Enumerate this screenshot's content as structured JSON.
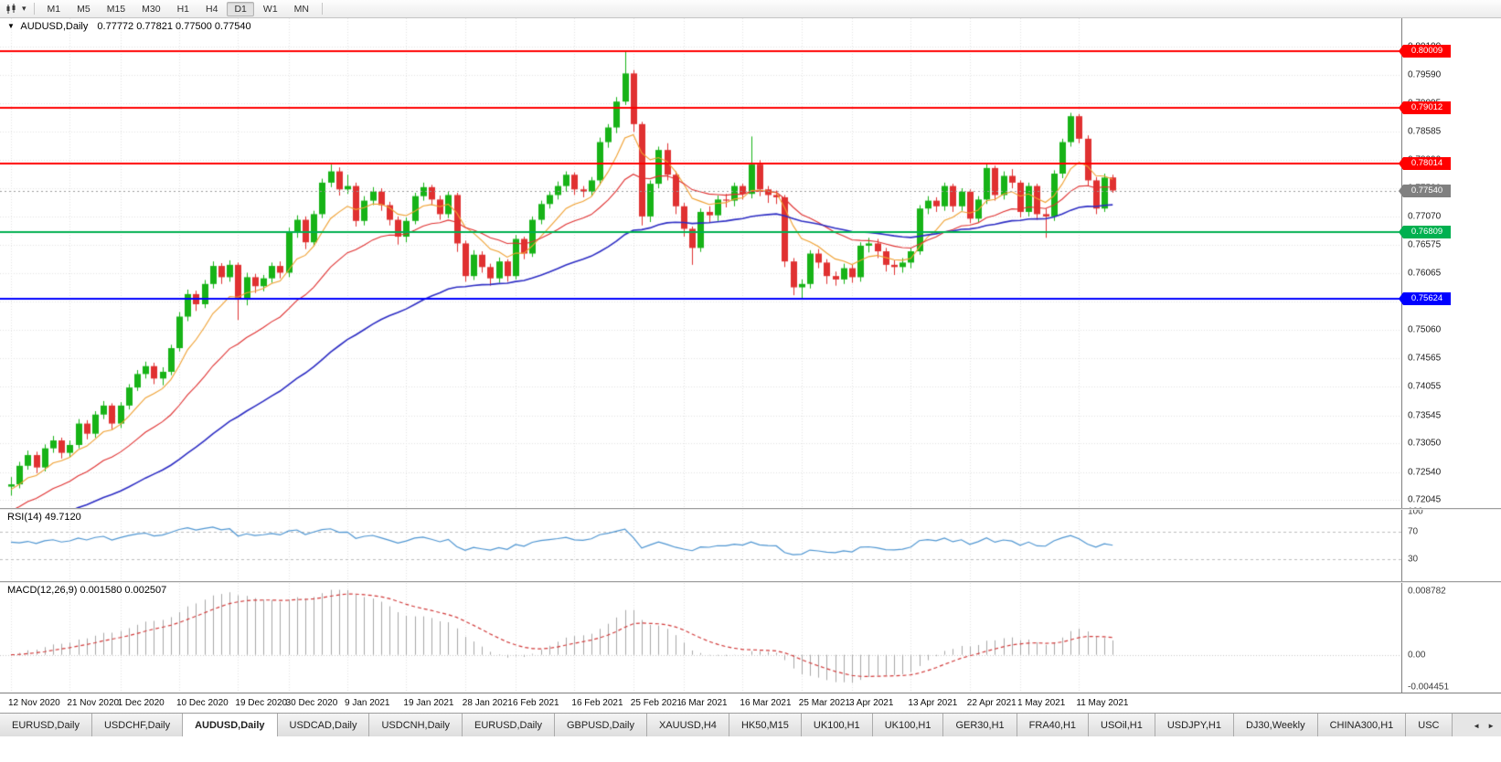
{
  "toolbar": {
    "timeframes": [
      "M1",
      "M5",
      "M15",
      "M30",
      "H1",
      "H4",
      "D1",
      "W1",
      "MN"
    ],
    "active_timeframe": "D1"
  },
  "header": {
    "marker": "▼",
    "symbol": "AUDUSD,Daily",
    "ohlc": "0.77772 0.77821 0.77500 0.77540"
  },
  "price_axis": {
    "range": {
      "min": 0.719,
      "max": 0.806
    },
    "ticks": [
      "0.80100",
      "0.79590",
      "0.79095",
      "0.78585",
      "0.78090",
      "0.77580",
      "0.77070",
      "0.76575",
      "0.76065",
      "0.75570",
      "0.75060",
      "0.74565",
      "0.74055",
      "0.73545",
      "0.73050",
      "0.72540",
      "0.72045"
    ]
  },
  "levels": [
    {
      "value": 0.80009,
      "label": "0.80009",
      "color": "#ff0000"
    },
    {
      "value": 0.79012,
      "label": "0.79012",
      "color": "#ff0000"
    },
    {
      "value": 0.78014,
      "label": "0.78014",
      "color": "#ff0000"
    },
    {
      "value": 0.76809,
      "label": "0.76809",
      "color": "#00b050"
    },
    {
      "value": 0.75624,
      "label": "0.75624",
      "color": "#0000ff"
    }
  ],
  "current_price": {
    "value": 0.7754,
    "label": "0.77540",
    "color": "#808080"
  },
  "chart_data": {
    "type": "candlestick",
    "symbol": "AUDUSD",
    "timeframe": "Daily",
    "style": {
      "bull_color": "#17b317",
      "bear_color": "#e03131",
      "grid_color": "#e3e3e3"
    },
    "candles": [
      [
        0.7228,
        0.7245,
        0.7212,
        0.7232
      ],
      [
        0.7232,
        0.7272,
        0.7225,
        0.7265
      ],
      [
        0.7265,
        0.7292,
        0.7258,
        0.7284
      ],
      [
        0.7284,
        0.729,
        0.7252,
        0.7262
      ],
      [
        0.7262,
        0.7303,
        0.7255,
        0.7296
      ],
      [
        0.7296,
        0.7318,
        0.7288,
        0.731
      ],
      [
        0.731,
        0.7315,
        0.7278,
        0.7288
      ],
      [
        0.7288,
        0.731,
        0.728,
        0.7302
      ],
      [
        0.7302,
        0.7348,
        0.7296,
        0.734
      ],
      [
        0.734,
        0.7346,
        0.7312,
        0.7322
      ],
      [
        0.7322,
        0.7362,
        0.7315,
        0.7356
      ],
      [
        0.7356,
        0.738,
        0.7348,
        0.7372
      ],
      [
        0.7372,
        0.7376,
        0.733,
        0.734
      ],
      [
        0.734,
        0.7378,
        0.7332,
        0.7372
      ],
      [
        0.7372,
        0.741,
        0.7365,
        0.7404
      ],
      [
        0.7404,
        0.7435,
        0.7398,
        0.7428
      ],
      [
        0.7428,
        0.745,
        0.742,
        0.7442
      ],
      [
        0.7442,
        0.7448,
        0.741,
        0.742
      ],
      [
        0.742,
        0.744,
        0.7408,
        0.7432
      ],
      [
        0.7432,
        0.748,
        0.7426,
        0.7474
      ],
      [
        0.7474,
        0.7538,
        0.7468,
        0.753
      ],
      [
        0.753,
        0.7578,
        0.7522,
        0.757
      ],
      [
        0.757,
        0.7576,
        0.754,
        0.7552
      ],
      [
        0.7552,
        0.7595,
        0.7545,
        0.7588
      ],
      [
        0.7588,
        0.7628,
        0.758,
        0.762
      ],
      [
        0.762,
        0.7625,
        0.7588,
        0.76
      ],
      [
        0.76,
        0.763,
        0.7592,
        0.7622
      ],
      [
        0.7622,
        0.7626,
        0.7524,
        0.756
      ],
      [
        0.756,
        0.7608,
        0.755,
        0.76
      ],
      [
        0.76,
        0.7606,
        0.7572,
        0.7584
      ],
      [
        0.7584,
        0.7604,
        0.7575,
        0.7598
      ],
      [
        0.7598,
        0.7626,
        0.759,
        0.762
      ],
      [
        0.762,
        0.7628,
        0.7598,
        0.7608
      ],
      [
        0.7608,
        0.7688,
        0.76,
        0.768
      ],
      [
        0.768,
        0.771,
        0.767,
        0.7702
      ],
      [
        0.7702,
        0.7708,
        0.765,
        0.7662
      ],
      [
        0.7662,
        0.7718,
        0.7655,
        0.7712
      ],
      [
        0.7712,
        0.7775,
        0.7705,
        0.7768
      ],
      [
        0.7768,
        0.78,
        0.776,
        0.7788
      ],
      [
        0.7788,
        0.7795,
        0.7745,
        0.7756
      ],
      [
        0.7756,
        0.7782,
        0.7748,
        0.7762
      ],
      [
        0.7762,
        0.7768,
        0.769,
        0.77
      ],
      [
        0.77,
        0.7744,
        0.7692,
        0.7736
      ],
      [
        0.7736,
        0.776,
        0.7728,
        0.7752
      ],
      [
        0.7752,
        0.7758,
        0.7718,
        0.7728
      ],
      [
        0.7728,
        0.7734,
        0.7692,
        0.7702
      ],
      [
        0.7702,
        0.7708,
        0.7658,
        0.7672
      ],
      [
        0.7672,
        0.7706,
        0.7662,
        0.77
      ],
      [
        0.77,
        0.775,
        0.7694,
        0.7744
      ],
      [
        0.7744,
        0.7768,
        0.7736,
        0.776
      ],
      [
        0.776,
        0.7764,
        0.7728,
        0.7738
      ],
      [
        0.7738,
        0.7745,
        0.7702,
        0.7712
      ],
      [
        0.7712,
        0.7752,
        0.7705,
        0.7746
      ],
      [
        0.7746,
        0.775,
        0.7645,
        0.766
      ],
      [
        0.766,
        0.7665,
        0.7592,
        0.7602
      ],
      [
        0.7602,
        0.7648,
        0.7595,
        0.764
      ],
      [
        0.764,
        0.7646,
        0.7608,
        0.7618
      ],
      [
        0.7618,
        0.7624,
        0.7585,
        0.7598
      ],
      [
        0.7598,
        0.7635,
        0.759,
        0.7628
      ],
      [
        0.7628,
        0.7632,
        0.7592,
        0.7602
      ],
      [
        0.7602,
        0.7675,
        0.7596,
        0.7668
      ],
      [
        0.7668,
        0.7672,
        0.7632,
        0.7642
      ],
      [
        0.7642,
        0.7708,
        0.7636,
        0.7702
      ],
      [
        0.7702,
        0.7736,
        0.7694,
        0.773
      ],
      [
        0.773,
        0.7752,
        0.7722,
        0.7746
      ],
      [
        0.7746,
        0.777,
        0.7738,
        0.7762
      ],
      [
        0.7762,
        0.7788,
        0.7752,
        0.7782
      ],
      [
        0.7782,
        0.7786,
        0.7746,
        0.7756
      ],
      [
        0.7756,
        0.7762,
        0.7742,
        0.7752
      ],
      [
        0.7752,
        0.7778,
        0.7744,
        0.7772
      ],
      [
        0.7772,
        0.7848,
        0.7764,
        0.784
      ],
      [
        0.784,
        0.7872,
        0.783,
        0.7866
      ],
      [
        0.7866,
        0.792,
        0.7856,
        0.7912
      ],
      [
        0.7912,
        0.8001,
        0.7906,
        0.7962
      ],
      [
        0.7962,
        0.7968,
        0.7858,
        0.7872
      ],
      [
        0.7872,
        0.7876,
        0.7692,
        0.7708
      ],
      [
        0.7708,
        0.7772,
        0.7698,
        0.7766
      ],
      [
        0.7766,
        0.7832,
        0.7758,
        0.7826
      ],
      [
        0.7826,
        0.7838,
        0.7772,
        0.7782
      ],
      [
        0.7782,
        0.7788,
        0.7712,
        0.7726
      ],
      [
        0.7726,
        0.7732,
        0.7672,
        0.7686
      ],
      [
        0.7686,
        0.769,
        0.7622,
        0.7652
      ],
      [
        0.7652,
        0.7722,
        0.7645,
        0.7716
      ],
      [
        0.7716,
        0.7726,
        0.7698,
        0.771
      ],
      [
        0.771,
        0.7745,
        0.77,
        0.7738
      ],
      [
        0.7738,
        0.7748,
        0.7724,
        0.7736
      ],
      [
        0.7736,
        0.7768,
        0.7726,
        0.7762
      ],
      [
        0.7762,
        0.7766,
        0.7738,
        0.7748
      ],
      [
        0.7748,
        0.785,
        0.774,
        0.78
      ],
      [
        0.78,
        0.7808,
        0.7744,
        0.7756
      ],
      [
        0.7756,
        0.7762,
        0.7732,
        0.7746
      ],
      [
        0.7746,
        0.7754,
        0.773,
        0.7742
      ],
      [
        0.7742,
        0.7746,
        0.7618,
        0.7628
      ],
      [
        0.7628,
        0.7634,
        0.7568,
        0.7582
      ],
      [
        0.7582,
        0.7596,
        0.7562,
        0.7588
      ],
      [
        0.7588,
        0.7648,
        0.758,
        0.7642
      ],
      [
        0.7642,
        0.765,
        0.7616,
        0.7626
      ],
      [
        0.7626,
        0.7632,
        0.7588,
        0.7602
      ],
      [
        0.7602,
        0.761,
        0.7585,
        0.7596
      ],
      [
        0.7596,
        0.7624,
        0.7588,
        0.7616
      ],
      [
        0.7616,
        0.7622,
        0.759,
        0.76
      ],
      [
        0.76,
        0.7662,
        0.7592,
        0.7656
      ],
      [
        0.7656,
        0.767,
        0.7644,
        0.766
      ],
      [
        0.766,
        0.7668,
        0.7634,
        0.7646
      ],
      [
        0.7646,
        0.7652,
        0.761,
        0.7622
      ],
      [
        0.7622,
        0.763,
        0.7604,
        0.7618
      ],
      [
        0.7618,
        0.7634,
        0.7608,
        0.7626
      ],
      [
        0.7626,
        0.7652,
        0.7616,
        0.7646
      ],
      [
        0.7646,
        0.7728,
        0.764,
        0.7722
      ],
      [
        0.7722,
        0.7744,
        0.7712,
        0.7736
      ],
      [
        0.7736,
        0.7742,
        0.7716,
        0.7726
      ],
      [
        0.7726,
        0.7768,
        0.7718,
        0.7762
      ],
      [
        0.7762,
        0.7766,
        0.7716,
        0.7726
      ],
      [
        0.7726,
        0.7758,
        0.7718,
        0.7752
      ],
      [
        0.7752,
        0.7756,
        0.7696,
        0.7704
      ],
      [
        0.7704,
        0.7744,
        0.7698,
        0.7738
      ],
      [
        0.7738,
        0.7802,
        0.773,
        0.7794
      ],
      [
        0.7794,
        0.7798,
        0.7736,
        0.7746
      ],
      [
        0.7746,
        0.7788,
        0.7738,
        0.778
      ],
      [
        0.778,
        0.7792,
        0.7758,
        0.7768
      ],
      [
        0.7768,
        0.7772,
        0.7706,
        0.7716
      ],
      [
        0.7716,
        0.7768,
        0.7708,
        0.7762
      ],
      [
        0.7762,
        0.7766,
        0.7702,
        0.7712
      ],
      [
        0.7712,
        0.7722,
        0.767,
        0.7708
      ],
      [
        0.7708,
        0.779,
        0.77,
        0.7784
      ],
      [
        0.7784,
        0.7846,
        0.7776,
        0.784
      ],
      [
        0.784,
        0.7892,
        0.7832,
        0.7886
      ],
      [
        0.7886,
        0.789,
        0.7838,
        0.7846
      ],
      [
        0.7846,
        0.7852,
        0.7762,
        0.7772
      ],
      [
        0.7772,
        0.7778,
        0.7712,
        0.7722
      ],
      [
        0.7722,
        0.7784,
        0.7716,
        0.7777
      ],
      [
        0.77772,
        0.77821,
        0.775,
        0.7754
      ]
    ],
    "date_ticks": [
      {
        "index": 0,
        "label": "12 Nov 2020"
      },
      {
        "index": 7,
        "label": "21 Nov 2020"
      },
      {
        "index": 13,
        "label": "1 Dec 2020"
      },
      {
        "index": 20,
        "label": "10 Dec 2020"
      },
      {
        "index": 27,
        "label": "19 Dec 2020"
      },
      {
        "index": 33,
        "label": "30 Dec 2020"
      },
      {
        "index": 40,
        "label": "9 Jan 2021"
      },
      {
        "index": 47,
        "label": "19 Jan 2021"
      },
      {
        "index": 54,
        "label": "28 Jan 2021"
      },
      {
        "index": 60,
        "label": "6 Feb 2021"
      },
      {
        "index": 67,
        "label": "16 Feb 2021"
      },
      {
        "index": 74,
        "label": "25 Feb 2021"
      },
      {
        "index": 80,
        "label": "6 Mar 2021"
      },
      {
        "index": 87,
        "label": "16 Mar 2021"
      },
      {
        "index": 94,
        "label": "25 Mar 2021"
      },
      {
        "index": 100,
        "label": "3 Apr 2021"
      },
      {
        "index": 107,
        "label": "13 Apr 2021"
      },
      {
        "index": 114,
        "label": "22 Apr 2021"
      },
      {
        "index": 120,
        "label": "1 May 2021"
      },
      {
        "index": 127,
        "label": "11 May 2021"
      }
    ],
    "moving_averages": [
      {
        "name": "fast-ma",
        "period": 8,
        "seed": 0.722,
        "color": "#f0a030"
      },
      {
        "name": "medium-ma",
        "period": 20,
        "seed": 0.718,
        "color": "#e03131"
      },
      {
        "name": "slow-ma",
        "period": 50,
        "seed": 0.7148,
        "color": "#2d2dc4"
      }
    ]
  },
  "rsi": {
    "title": "RSI(14) 49.7120",
    "period": 14,
    "value": 49.712,
    "color": "#4f96d2",
    "levels": [
      70,
      30
    ],
    "scale_labels": [
      "100",
      "70",
      "30"
    ]
  },
  "macd": {
    "title": "MACD(12,26,9) 0.001580 0.002507",
    "fast": 12,
    "slow": 26,
    "signal": 9,
    "macd_value": 0.00158,
    "signal_value": 0.002507,
    "histogram_color": "#a8a8a8",
    "signal_color": "#d23b3b",
    "scale_labels": [
      "0.008782",
      "0.00",
      "-0.004451"
    ]
  },
  "tabs": {
    "active_index": 2,
    "scroll_left": "◄",
    "scroll_right": "►",
    "items": [
      "EURUSD,Daily",
      "USDCHF,Daily",
      "AUDUSD,Daily",
      "USDCAD,Daily",
      "USDCNH,Daily",
      "EURUSD,Daily",
      "GBPUSD,Daily",
      "XAUUSD,H4",
      "HK50,M15",
      "UK100,H1",
      "UK100,H1",
      "GER30,H1",
      "FRA40,H1",
      "USOil,H1",
      "USDJPY,H1",
      "DJ30,Weekly",
      "CHINA300,H1",
      "USC"
    ]
  }
}
